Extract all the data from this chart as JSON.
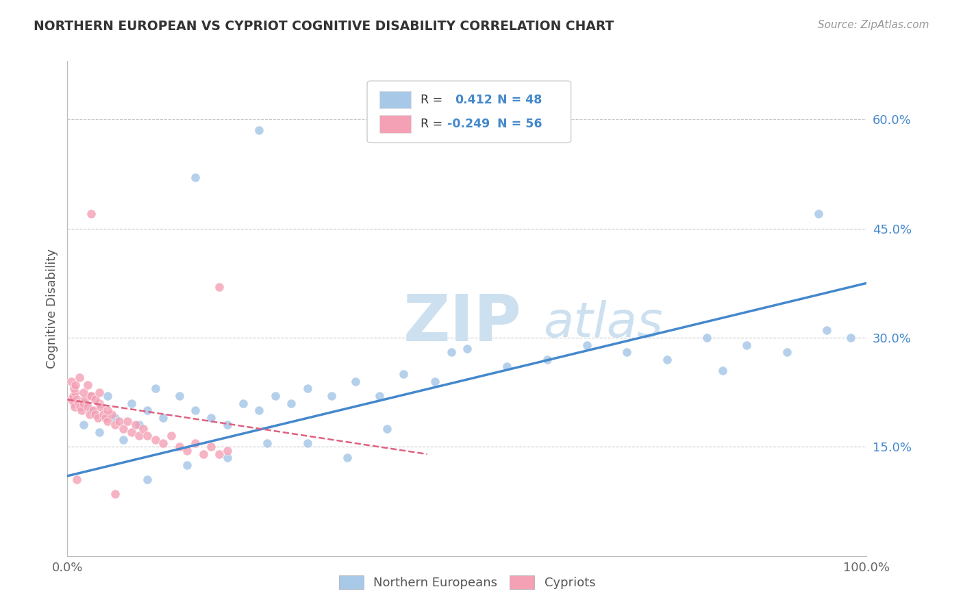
{
  "title": "NORTHERN EUROPEAN VS CYPRIOT COGNITIVE DISABILITY CORRELATION CHART",
  "source": "Source: ZipAtlas.com",
  "ylabel": "Cognitive Disability",
  "xlim": [
    0.0,
    1.0
  ],
  "ylim": [
    0.0,
    0.68
  ],
  "xtick_positions": [
    0.0,
    1.0
  ],
  "xtick_labels": [
    "0.0%",
    "100.0%"
  ],
  "ytick_values": [
    0.15,
    0.3,
    0.45,
    0.6
  ],
  "ytick_labels": [
    "15.0%",
    "30.0%",
    "45.0%",
    "60.0%"
  ],
  "grid_color": "#c8c8c8",
  "background_color": "#ffffff",
  "watermark_zip_color": "#cce0f0",
  "watermark_atlas_color": "#cce0f0",
  "blue_scatter_color": "#a8c8e8",
  "pink_scatter_color": "#f4a0b5",
  "blue_line_color": "#4488cc",
  "pink_line_color": "#e06080",
  "legend_blue_box_color": "#a8c8e8",
  "legend_pink_box_color": "#f4a0b5",
  "blue_R": 0.412,
  "blue_N": 48,
  "pink_R": -0.249,
  "pink_N": 56,
  "blue_line_x0": 0.0,
  "blue_line_y0": 0.11,
  "blue_line_x1": 1.0,
  "blue_line_y1": 0.375,
  "pink_line_x0": 0.0,
  "pink_line_y0": 0.215,
  "pink_line_x1": 0.45,
  "pink_line_y1": 0.14,
  "scatter_marker_size": 90
}
